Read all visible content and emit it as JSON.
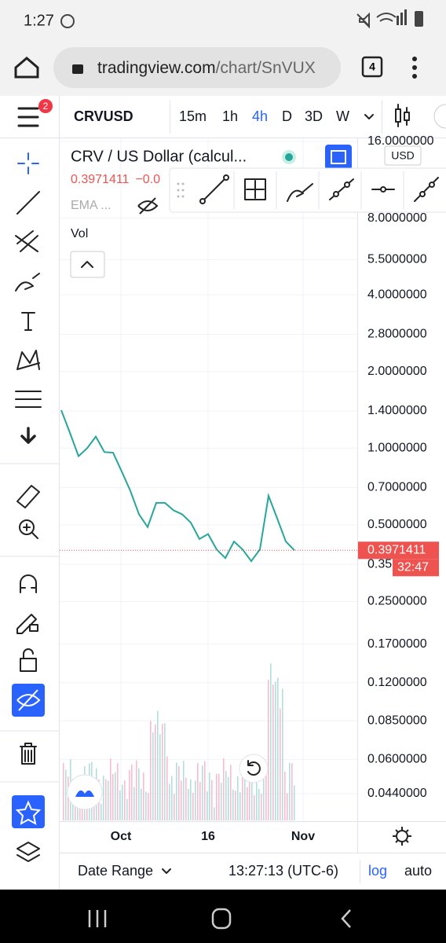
{
  "status_bar": {
    "time": "1:27"
  },
  "browser": {
    "url_host": "tradingview.com",
    "url_path": "/chart/SnVUX",
    "tab_count": "4"
  },
  "toolbar": {
    "menu_badge": "2",
    "symbol": "CRVUSD",
    "intervals": [
      "15m",
      "1h",
      "4h",
      "D",
      "3D",
      "W"
    ],
    "active_interval": "4h"
  },
  "legend": {
    "title": "CRV / US Dollar (calcul...",
    "price": "0.3971411",
    "change": "−0.0",
    "indicator": "EMA ...",
    "volume": "Vol"
  },
  "price_axis": {
    "currency": "USD",
    "log": true,
    "grid": true,
    "ticks": [
      {
        "value": 16,
        "label": "16.0000000"
      },
      {
        "value": 8,
        "label": "8.0000000"
      },
      {
        "value": 5.5,
        "label": "5.5000000"
      },
      {
        "value": 4,
        "label": "4.0000000"
      },
      {
        "value": 2.8,
        "label": "2.8000000"
      },
      {
        "value": 2,
        "label": "2.0000000"
      },
      {
        "value": 1.4,
        "label": "1.4000000"
      },
      {
        "value": 1,
        "label": "1.0000000"
      },
      {
        "value": 0.7,
        "label": "0.7000000"
      },
      {
        "value": 0.5,
        "label": "0.5000000"
      },
      {
        "value": 0.35,
        "label": "0.35"
      },
      {
        "value": 0.25,
        "label": "0.2500000"
      },
      {
        "value": 0.17,
        "label": "0.1700000"
      },
      {
        "value": 0.12,
        "label": "0.1200000"
      },
      {
        "value": 0.085,
        "label": "0.0850000"
      },
      {
        "value": 0.06,
        "label": "0.0600000"
      },
      {
        "value": 0.044,
        "label": "0.0440000"
      }
    ],
    "last_price": {
      "value": 0.3971411,
      "label": "0.3971411"
    },
    "countdown": "32:47"
  },
  "price": {
    "color": "#26a69a",
    "closes": [
      1.41,
      1.15,
      0.93,
      1.0,
      1.11,
      0.965,
      0.96,
      0.81,
      0.68,
      0.55,
      0.49,
      0.61,
      0.61,
      0.57,
      0.55,
      0.51,
      0.44,
      0.46,
      0.4,
      0.37,
      0.43,
      0.4,
      0.36,
      0.4,
      0.65,
      0.53,
      0.43,
      0.3971411
    ]
  },
  "time_axis": {
    "labels": [
      "Oct",
      "16",
      "Nov"
    ]
  },
  "bottom_bar": {
    "date_range": "Date Range",
    "clock": "13:27:13 (UTC-6)",
    "log": "log",
    "auto": "auto"
  }
}
